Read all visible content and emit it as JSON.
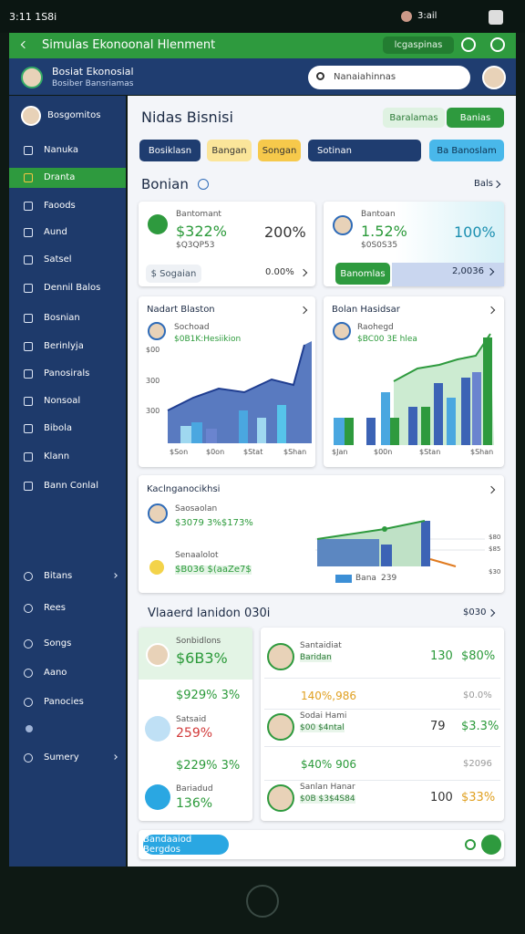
{
  "status": {
    "time": "3:11 1S8i",
    "right": "3:ail"
  },
  "app_bar": {
    "title": "Simulas Ekonoonal Hlenment",
    "button": "lcgaspinas"
  },
  "profile": {
    "name": "Bosiat Ekonosial",
    "subtitle": "Bosiber Bansriamas"
  },
  "search": {
    "placeholder": "Nanaiahinnas"
  },
  "sidebar": {
    "user": "Bosgomitos",
    "items": [
      "Nanuka",
      "Dranta",
      "Faoods",
      "Aund",
      "Satsel",
      "Dennil Balos",
      "Bosnian",
      "Berinlyja",
      "Panosirals",
      "Nonsoal",
      "Bibola",
      "Klann",
      "Bann Conlal"
    ],
    "bottom_items": [
      "Bitans",
      "Rees",
      "Songs",
      "Aano",
      "Panocies",
      "Sumery"
    ]
  },
  "main": {
    "title": "Nidas Bisnisi",
    "actions": [
      "Baralamas",
      "Banias"
    ],
    "tabs": [
      "Bosiklasn",
      "Bangan",
      "Songan",
      "Sotinan",
      "Ba Banoslam"
    ],
    "section1": {
      "title": "Bonian",
      "link": "Bals"
    },
    "kpi_cards": [
      {
        "label": "Bantomant",
        "value": "$322%",
        "sub": "$Q3QP53",
        "big": "200%",
        "pill": "$ Sogaian",
        "foot": "0.00%"
      },
      {
        "label": "Bantoan",
        "value": "1.52%",
        "sub": "$0S0S35",
        "big": "100%",
        "pill": "Banomlas",
        "foot": "2,0036"
      }
    ],
    "chart_cards": [
      {
        "title": "Nadart Blaston",
        "name": "Sochoad",
        "sub": "$0B1K:Hesiikion",
        "y_labels": [
          "$00",
          "300",
          "300"
        ],
        "x_labels": [
          "$Son",
          "$0on",
          "$Stat",
          "$Shan"
        ]
      },
      {
        "title": "Bolan Hasidsar",
        "name": "Raohegd",
        "sub": "$BC00 3E hlea",
        "x_labels": [
          "$Jan",
          "$00n",
          "$Stan",
          "$Shan"
        ]
      }
    ],
    "wide_card": {
      "title": "Kaclnganocikhsi",
      "rows": [
        {
          "name": "Saosaolan",
          "value": "$3079 3%$173%"
        },
        {
          "name": "Senaalolot",
          "value": "$B036 $(aaZe7$"
        }
      ],
      "y_labels": [
        "$80",
        "$85",
        "$30"
      ],
      "legend": "Bana",
      "legend_value": "239"
    },
    "section2": {
      "title": "Vlaaerd lanidon 030i",
      "link": "$030"
    },
    "left_list": {
      "header_name": "Sonbidlons",
      "header_value": "$6B3%",
      "rows": [
        {
          "value": "$929% 3%"
        },
        {
          "name": "Satsaid",
          "value": "259%"
        },
        {
          "value": "$229% 3%"
        },
        {
          "name": "Bariadud",
          "value": "136%"
        }
      ]
    },
    "right_list": {
      "rows": [
        {
          "name": "Santaidiat",
          "sub": "Baridan",
          "count": "130",
          "value": "$80%"
        },
        {
          "value": "140%,986",
          "right": "$0.0%"
        },
        {
          "name": "Sodai Hami",
          "sub": "$00 $4ntal",
          "count": "79",
          "value": "$3.3%"
        },
        {
          "value": "$40% 906",
          "right": "$2096"
        },
        {
          "name": "Sanlan Hanar",
          "sub": "$0B $3$4S84",
          "count": "100",
          "value": "$33%"
        }
      ]
    },
    "footer": {
      "button": "Bandaaiod Bergdos"
    }
  }
}
